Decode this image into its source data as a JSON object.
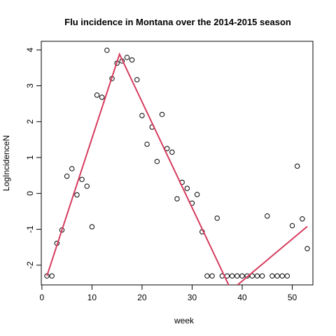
{
  "chart_data": {
    "type": "scatter",
    "title": "Flu incidence in Montana over the 2014-2015 season",
    "xlabel": "week",
    "ylabel": "LogIncidenceN",
    "xlim": [
      -0.12,
      54.12
    ],
    "ylim": [
      -2.55,
      4.24
    ],
    "xticks": [
      0,
      10,
      20,
      30,
      40,
      50
    ],
    "yticks": [
      -2,
      -1,
      0,
      1,
      2,
      3,
      4
    ],
    "grid": false,
    "points": [
      {
        "x": 1,
        "y": -2.3
      },
      {
        "x": 2,
        "y": -2.3
      },
      {
        "x": 3,
        "y": -1.39
      },
      {
        "x": 4,
        "y": -1.02
      },
      {
        "x": 5,
        "y": 0.48
      },
      {
        "x": 6,
        "y": 0.69
      },
      {
        "x": 7,
        "y": -0.04
      },
      {
        "x": 8,
        "y": 0.39
      },
      {
        "x": 9,
        "y": 0.2
      },
      {
        "x": 10,
        "y": -0.93
      },
      {
        "x": 11,
        "y": 2.74
      },
      {
        "x": 12,
        "y": 2.68
      },
      {
        "x": 13,
        "y": 3.99
      },
      {
        "x": 14,
        "y": 3.2
      },
      {
        "x": 15,
        "y": 3.63
      },
      {
        "x": 16,
        "y": 3.69
      },
      {
        "x": 17,
        "y": 3.79
      },
      {
        "x": 18,
        "y": 3.72
      },
      {
        "x": 19,
        "y": 3.17
      },
      {
        "x": 20,
        "y": 2.17
      },
      {
        "x": 21,
        "y": 1.37
      },
      {
        "x": 22,
        "y": 1.85
      },
      {
        "x": 23,
        "y": 0.89
      },
      {
        "x": 24,
        "y": 2.2
      },
      {
        "x": 25,
        "y": 1.25
      },
      {
        "x": 26,
        "y": 1.15
      },
      {
        "x": 27,
        "y": -0.15
      },
      {
        "x": 28,
        "y": 0.31
      },
      {
        "x": 29,
        "y": 0.14
      },
      {
        "x": 30,
        "y": -0.27
      },
      {
        "x": 31,
        "y": -0.03
      },
      {
        "x": 32,
        "y": -1.07
      },
      {
        "x": 33,
        "y": -2.3
      },
      {
        "x": 34,
        "y": -2.3
      },
      {
        "x": 35,
        "y": -0.69
      },
      {
        "x": 36,
        "y": -2.3
      },
      {
        "x": 37,
        "y": -2.3
      },
      {
        "x": 38,
        "y": -2.3
      },
      {
        "x": 39,
        "y": -2.3
      },
      {
        "x": 40,
        "y": -2.3
      },
      {
        "x": 41,
        "y": -2.3
      },
      {
        "x": 42,
        "y": -2.3
      },
      {
        "x": 43,
        "y": -2.3
      },
      {
        "x": 44,
        "y": -2.3
      },
      {
        "x": 45,
        "y": -0.63
      },
      {
        "x": 46,
        "y": -2.3
      },
      {
        "x": 47,
        "y": -2.3
      },
      {
        "x": 48,
        "y": -2.3
      },
      {
        "x": 49,
        "y": -2.3
      },
      {
        "x": 50,
        "y": -0.9
      },
      {
        "x": 51,
        "y": 0.76
      },
      {
        "x": 52,
        "y": -0.71
      },
      {
        "x": 53,
        "y": -1.54
      }
    ],
    "fit_line": {
      "color": "#d63c5e",
      "points": [
        {
          "x": 1,
          "y": -2.3
        },
        {
          "x": 15.5,
          "y": 3.88
        },
        {
          "x": 37.8,
          "y": -2.7
        },
        {
          "x": 53,
          "y": -0.92
        }
      ]
    }
  }
}
